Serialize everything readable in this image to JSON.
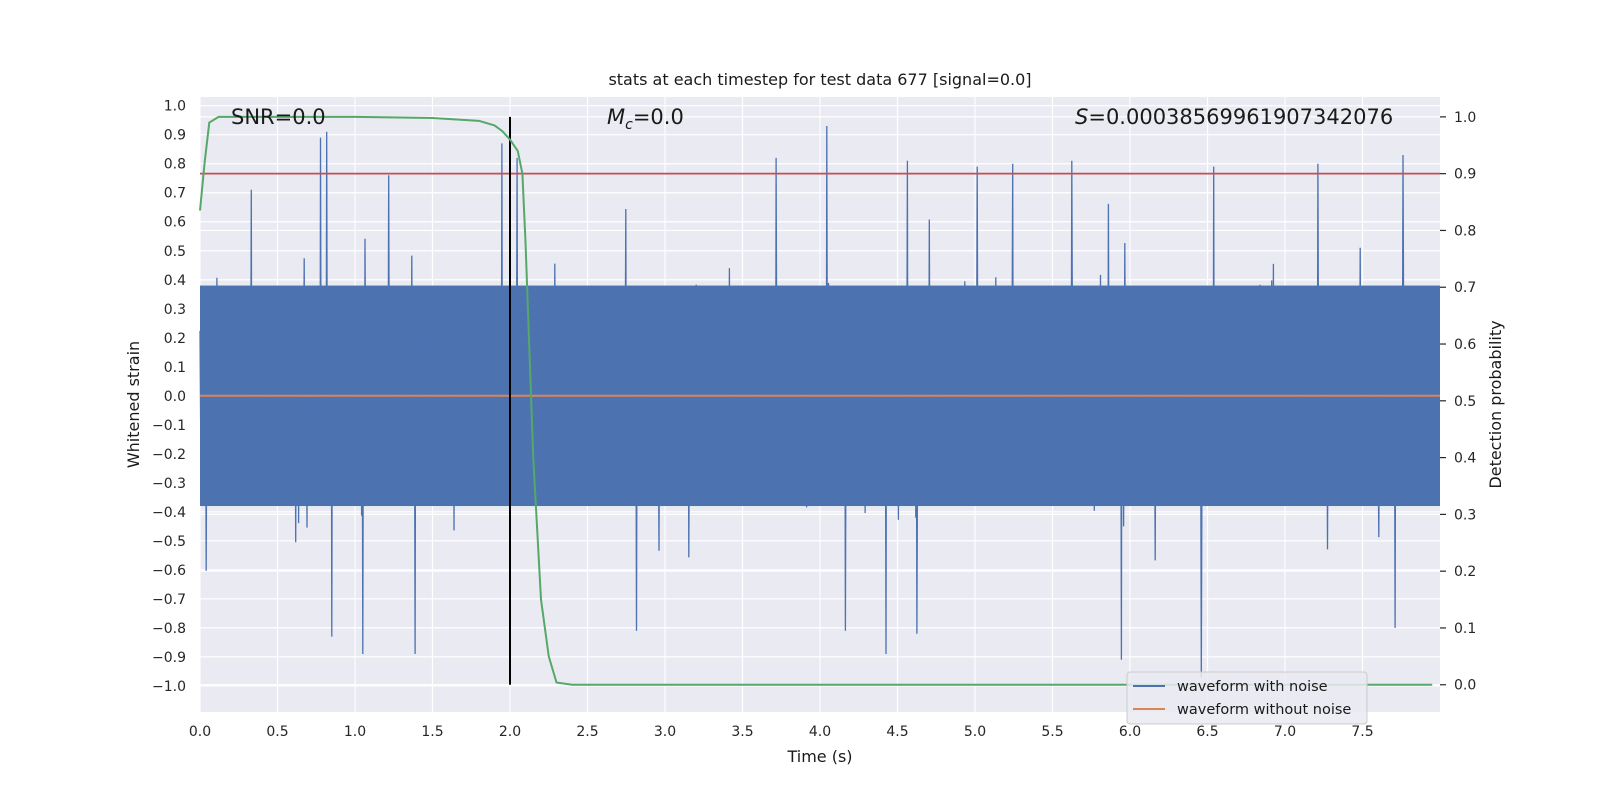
{
  "chart_data": {
    "type": "line",
    "title": "stats at each timestep for test data 677 [signal=0.0]",
    "xlabel": "Time (s)",
    "ylabel_left": "Whitened strain",
    "ylabel_right": "Detection probability",
    "xlim": [
      0.0,
      8.0
    ],
    "ylim_left": [
      -1.09,
      1.03
    ],
    "ylim_right": [
      -0.048,
      1.035
    ],
    "x_ticks": [
      0.0,
      0.5,
      1.0,
      1.5,
      2.0,
      2.5,
      3.0,
      3.5,
      4.0,
      4.5,
      5.0,
      5.5,
      6.0,
      6.5,
      7.0,
      7.5
    ],
    "x_tick_labels": [
      "0.0",
      "0.5",
      "1.0",
      "1.5",
      "2.0",
      "2.5",
      "3.0",
      "3.5",
      "4.0",
      "4.5",
      "5.0",
      "5.5",
      "6.0",
      "6.5",
      "7.0",
      "7.5"
    ],
    "y_left_ticks": [
      1.0,
      0.9,
      0.8,
      0.7,
      0.6,
      0.5,
      0.4,
      0.3,
      0.2,
      0.1,
      0.0,
      -0.1,
      -0.2,
      -0.3,
      -0.4,
      -0.5,
      -0.6,
      -0.7,
      -0.8,
      -0.9,
      -1.0
    ],
    "y_left_tick_labels": [
      "1.0",
      "0.9",
      "0.8",
      "0.7",
      "0.6",
      "0.5",
      "0.4",
      "0.3",
      "0.2",
      "0.1",
      "0.0",
      "−0.1",
      "−0.2",
      "−0.3",
      "−0.4",
      "−0.5",
      "−0.6",
      "−0.7",
      "−0.8",
      "−0.9",
      "−1.0"
    ],
    "y_right_ticks": [
      1.0,
      0.9,
      0.8,
      0.7,
      0.6,
      0.5,
      0.4,
      0.3,
      0.2,
      0.1,
      0.0
    ],
    "y_right_tick_labels": [
      "1.0",
      "0.9",
      "0.8",
      "0.7",
      "0.6",
      "0.5",
      "0.4",
      "0.3",
      "0.2",
      "0.1",
      "0.0"
    ],
    "annotations": {
      "snr": "SNR=0.0",
      "mc_symbol": "M",
      "mc_subscript": "c",
      "mc_value": "=0.0",
      "s_symbol": "S",
      "s_value": "=0.00038569961907342076"
    },
    "series": [
      {
        "name": "waveform with noise",
        "color": "#4c72b0",
        "axis": "left",
        "description": "dense noise samples over 0–8 s, mostly within ±0.35 with spikes up to ~0.93 and down to ~-0.97",
        "noise_core_band": [
          -0.38,
          0.38
        ],
        "notable_peaks": [
          {
            "x": 0.78,
            "y": 0.89
          },
          {
            "x": 0.82,
            "y": 0.91
          },
          {
            "x": 0.33,
            "y": 0.71
          },
          {
            "x": 1.22,
            "y": 0.76
          },
          {
            "x": 1.95,
            "y": 0.87
          },
          {
            "x": 2.05,
            "y": 0.82
          },
          {
            "x": 3.72,
            "y": 0.82
          },
          {
            "x": 4.05,
            "y": 0.93
          },
          {
            "x": 4.57,
            "y": 0.81
          },
          {
            "x": 5.02,
            "y": 0.79
          },
          {
            "x": 5.25,
            "y": 0.8
          },
          {
            "x": 5.63,
            "y": 0.81
          },
          {
            "x": 6.55,
            "y": 0.79
          },
          {
            "x": 7.22,
            "y": 0.8
          },
          {
            "x": 7.77,
            "y": 0.83
          }
        ],
        "notable_troughs": [
          {
            "x": 0.85,
            "y": -0.83
          },
          {
            "x": 1.05,
            "y": -0.89
          },
          {
            "x": 1.39,
            "y": -0.89
          },
          {
            "x": 2.82,
            "y": -0.81
          },
          {
            "x": 4.17,
            "y": -0.81
          },
          {
            "x": 4.43,
            "y": -0.89
          },
          {
            "x": 4.63,
            "y": -0.82
          },
          {
            "x": 5.95,
            "y": -0.91
          },
          {
            "x": 6.47,
            "y": -0.97
          },
          {
            "x": 7.72,
            "y": -0.8
          }
        ]
      },
      {
        "name": "waveform without noise",
        "color": "#dd8452",
        "axis": "left",
        "x": [
          0.0,
          8.0
        ],
        "y": [
          0.0,
          0.0
        ]
      },
      {
        "name": "detection probability",
        "color": "#55a868",
        "axis": "right",
        "x": [
          0.0,
          0.03,
          0.06,
          0.12,
          0.2,
          0.5,
          1.0,
          1.5,
          1.8,
          1.9,
          1.95,
          2.0,
          2.05,
          2.08,
          2.1,
          2.15,
          2.2,
          2.25,
          2.3,
          2.4,
          3.0,
          4.0,
          5.0,
          6.0,
          7.0,
          7.95
        ],
        "y": [
          0.835,
          0.92,
          0.99,
          1.0,
          1.0,
          1.0,
          1.0,
          0.998,
          0.993,
          0.985,
          0.975,
          0.96,
          0.94,
          0.9,
          0.78,
          0.4,
          0.15,
          0.05,
          0.004,
          0.0,
          0.0,
          0.0,
          0.0,
          0.0,
          0.0,
          0.0
        ]
      }
    ],
    "threshold": {
      "value": 0.9,
      "axis": "right",
      "color": "#c44e52"
    },
    "vline": {
      "x": 2.0,
      "color": "#000000"
    },
    "legend": {
      "location": "lower-right",
      "entries": [
        {
          "label": "waveform with noise",
          "color": "#4c72b0"
        },
        {
          "label": "waveform without noise",
          "color": "#dd8452"
        }
      ]
    },
    "colors": {
      "background": "#eaeaf2",
      "grid": "#ffffff"
    },
    "grid": true
  }
}
